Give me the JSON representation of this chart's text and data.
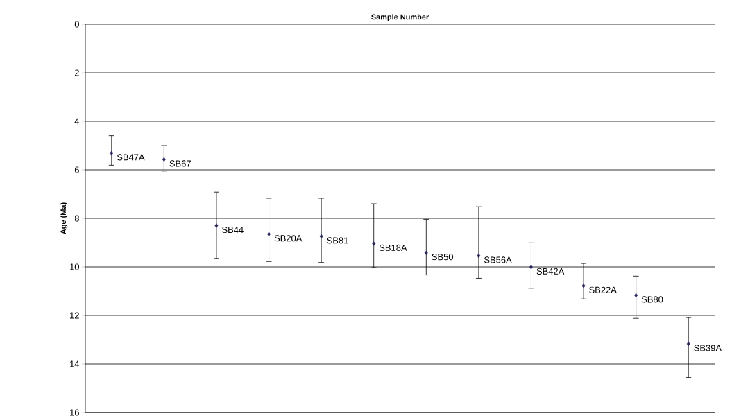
{
  "chart_data": {
    "type": "scatter",
    "xlabel": "Sample Number",
    "ylabel": "Age (Ma)",
    "categories": [
      null,
      null,
      null,
      null,
      null,
      null,
      null,
      null,
      null,
      null,
      null,
      null
    ],
    "series": [
      {
        "color": "#26265e",
        "values": [
          5.31,
          5.57,
          8.3,
          8.65,
          8.74,
          9.04,
          9.42,
          9.54,
          10.01,
          10.78,
          11.17,
          13.17
        ],
        "errors": [
          [
            4.59,
            5.81
          ],
          [
            5.0,
            6.05
          ],
          [
            6.92,
            9.65
          ],
          [
            7.17,
            9.78
          ],
          [
            7.17,
            9.82
          ],
          [
            7.4,
            10.03
          ],
          [
            8.04,
            10.33
          ],
          [
            7.52,
            10.47
          ],
          [
            9.01,
            10.88
          ],
          [
            9.86,
            11.32
          ],
          [
            10.38,
            12.12
          ],
          [
            12.09,
            14.56
          ]
        ]
      }
    ],
    "annotations": [
      "SB47A",
      "SB67",
      "SB44",
      "SB20A",
      "SB81",
      "SB18A",
      "SB50",
      "SB56A",
      "SB42A",
      "SB22A",
      "SB80",
      "SB39A"
    ],
    "ylim": [
      16,
      0
    ],
    "yticks": [
      0,
      2,
      4,
      6,
      8,
      10,
      12,
      14,
      16
    ],
    "grid": "y",
    "marker": "diamond",
    "tick_labels": "y"
  }
}
